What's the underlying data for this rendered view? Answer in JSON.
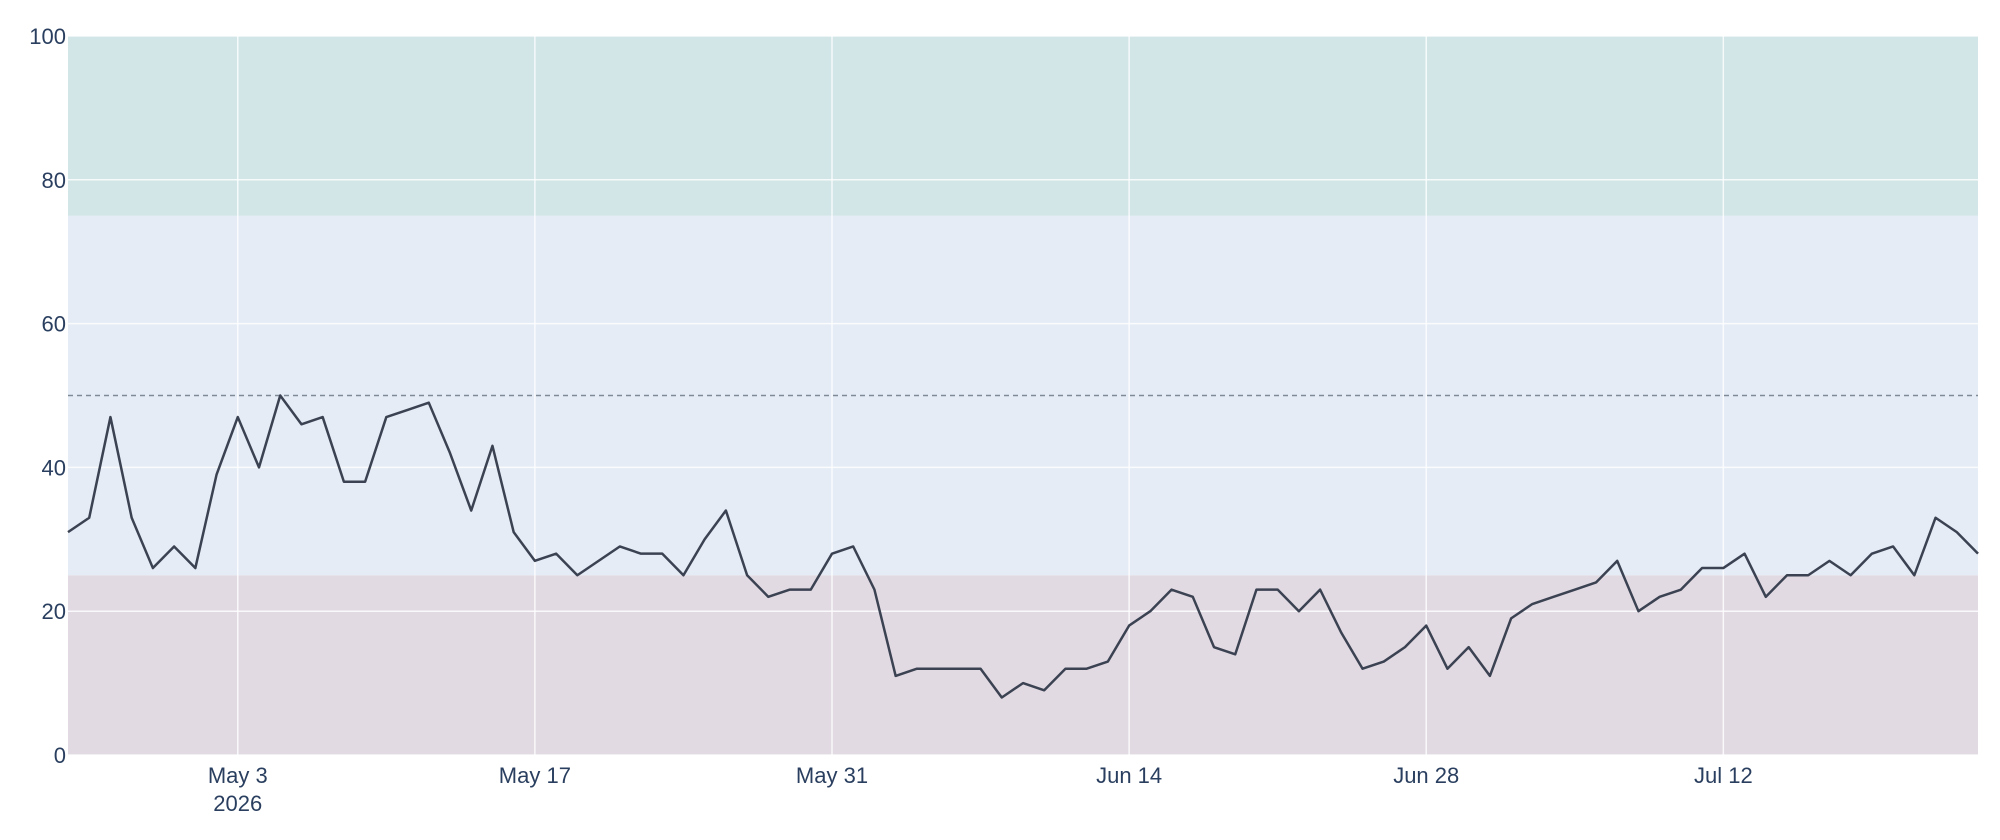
{
  "chart_data": {
    "type": "line",
    "x": [
      "2026-04-25",
      "2026-04-26",
      "2026-04-27",
      "2026-04-28",
      "2026-04-29",
      "2026-04-30",
      "2026-05-01",
      "2026-05-02",
      "2026-05-03",
      "2026-05-04",
      "2026-05-05",
      "2026-05-06",
      "2026-05-07",
      "2026-05-08",
      "2026-05-09",
      "2026-05-10",
      "2026-05-11",
      "2026-05-12",
      "2026-05-13",
      "2026-05-14",
      "2026-05-15",
      "2026-05-16",
      "2026-05-17",
      "2026-05-18",
      "2026-05-19",
      "2026-05-20",
      "2026-05-21",
      "2026-05-22",
      "2026-05-23",
      "2026-05-24",
      "2026-05-25",
      "2026-05-26",
      "2026-05-27",
      "2026-05-28",
      "2026-05-29",
      "2026-05-30",
      "2026-05-31",
      "2026-06-01",
      "2026-06-02",
      "2026-06-03",
      "2026-06-04",
      "2026-06-05",
      "2026-06-06",
      "2026-06-07",
      "2026-06-08",
      "2026-06-09",
      "2026-06-10",
      "2026-06-11",
      "2026-06-12",
      "2026-06-13",
      "2026-06-14",
      "2026-06-15",
      "2026-06-16",
      "2026-06-17",
      "2026-06-18",
      "2026-06-19",
      "2026-06-20",
      "2026-06-21",
      "2026-06-22",
      "2026-06-23",
      "2026-06-24",
      "2026-06-25",
      "2026-06-26",
      "2026-06-27",
      "2026-06-28",
      "2026-06-29",
      "2026-06-30",
      "2026-07-01",
      "2026-07-02",
      "2026-07-03",
      "2026-07-04",
      "2026-07-05",
      "2026-07-06",
      "2026-07-07",
      "2026-07-08",
      "2026-07-09",
      "2026-07-10",
      "2026-07-11",
      "2026-07-12",
      "2026-07-13",
      "2026-07-14",
      "2026-07-15",
      "2026-07-16",
      "2026-07-17",
      "2026-07-18",
      "2026-07-19",
      "2026-07-20",
      "2026-07-21",
      "2026-07-22",
      "2026-07-23",
      "2026-07-24"
    ],
    "values": [
      31,
      33,
      47,
      33,
      26,
      29,
      26,
      39,
      47,
      40,
      50,
      46,
      47,
      38,
      38,
      47,
      48,
      49,
      42,
      34,
      43,
      31,
      27,
      28,
      25,
      27,
      29,
      28,
      28,
      25,
      30,
      34,
      25,
      22,
      23,
      23,
      28,
      29,
      23,
      11,
      12,
      12,
      12,
      12,
      8,
      10,
      9,
      12,
      12,
      13,
      18,
      20,
      23,
      22,
      15,
      14,
      23,
      23,
      20,
      23,
      17,
      12,
      13,
      15,
      18,
      12,
      15,
      11,
      19,
      21,
      22,
      23,
      24,
      27,
      20,
      22,
      23,
      26,
      26,
      28,
      22,
      25,
      25,
      27,
      25,
      28,
      29,
      25,
      33,
      31,
      28
    ],
    "color": "#3b4252",
    "xlim": [
      "2026-04-25",
      "2026-07-24"
    ],
    "xticks": [
      {
        "value": "2026-05-03",
        "label": "May 3",
        "sublabel": "2026"
      },
      {
        "value": "2026-05-17",
        "label": "May 17"
      },
      {
        "value": "2026-05-31",
        "label": "May 31"
      },
      {
        "value": "2026-06-14",
        "label": "Jun 14"
      },
      {
        "value": "2026-06-28",
        "label": "Jun 28"
      },
      {
        "value": "2026-07-12",
        "label": "Jul 12"
      }
    ],
    "ylim": [
      0,
      100
    ],
    "yticks": [
      0,
      20,
      40,
      60,
      80,
      100
    ],
    "grid": true,
    "bands": [
      {
        "from": 0,
        "to": 25,
        "color": "#e2dae3"
      },
      {
        "from": 25,
        "to": 75,
        "color": "#e5ecf6"
      },
      {
        "from": 75,
        "to": 100,
        "color": "#d2e5e7"
      }
    ],
    "reference_line": 50
  }
}
